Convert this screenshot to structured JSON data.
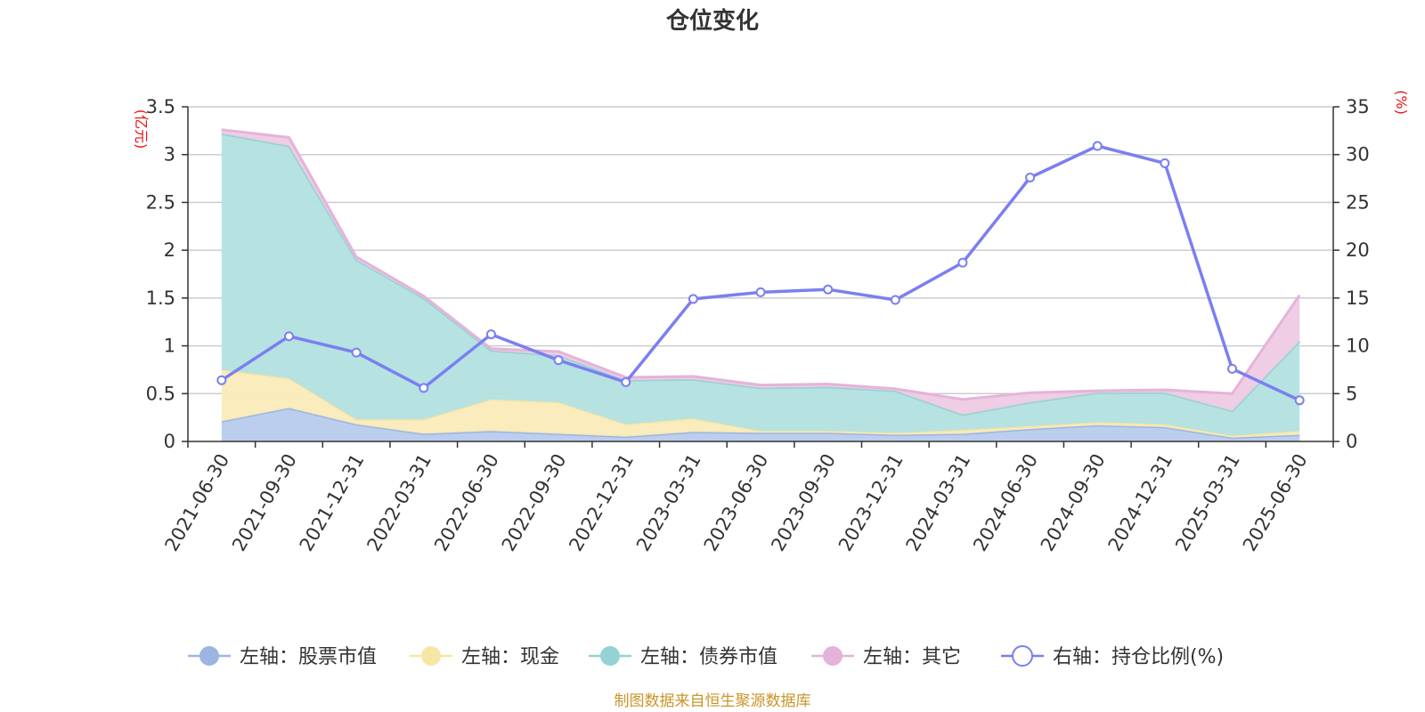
{
  "chart_data": {
    "type": "area",
    "title": "仓位变化",
    "left_axis_unit": "(亿元)",
    "right_axis_unit": "(%)",
    "categories": [
      "2021-06-30",
      "2021-09-30",
      "2021-12-31",
      "2022-03-31",
      "2022-06-30",
      "2022-09-30",
      "2022-12-31",
      "2023-03-31",
      "2023-06-30",
      "2023-09-30",
      "2023-12-31",
      "2024-03-31",
      "2024-06-30",
      "2024-09-30",
      "2024-12-31",
      "2025-03-31",
      "2025-06-30"
    ],
    "y_left": {
      "min": 0,
      "max": 3.5,
      "ticks": [
        "0",
        "0.5",
        "1",
        "1.5",
        "2",
        "2.5",
        "3",
        "3.5"
      ]
    },
    "y_right": {
      "min": 0,
      "max": 35,
      "ticks": [
        "0",
        "5",
        "10",
        "15",
        "20",
        "25",
        "30",
        "35"
      ]
    },
    "stacked": true,
    "grid": true,
    "legend_position": "bottom",
    "series": [
      {
        "name": "左轴：股票市值",
        "axis": "left",
        "color": "#9db5e3",
        "fill": "#b8cbec",
        "values": [
          0.21,
          0.35,
          0.18,
          0.08,
          0.11,
          0.08,
          0.05,
          0.1,
          0.09,
          0.09,
          0.07,
          0.08,
          0.13,
          0.17,
          0.15,
          0.04,
          0.07
        ]
      },
      {
        "name": "左轴：现金",
        "axis": "left",
        "color": "#f8e6a6",
        "fill": "#faebb8",
        "values": [
          0.54,
          0.31,
          0.05,
          0.15,
          0.33,
          0.33,
          0.13,
          0.14,
          0.02,
          0.02,
          0.02,
          0.04,
          0.03,
          0.03,
          0.03,
          0.02,
          0.04
        ]
      },
      {
        "name": "左轴：债券市值",
        "axis": "left",
        "color": "#94d2d3",
        "fill": "#b3e0e0",
        "values": [
          2.47,
          2.43,
          1.67,
          1.27,
          0.51,
          0.49,
          0.46,
          0.41,
          0.45,
          0.46,
          0.44,
          0.16,
          0.25,
          0.31,
          0.33,
          0.26,
          0.94
        ]
      },
      {
        "name": "左轴：其它",
        "axis": "left",
        "color": "#e5b3d9",
        "fill": "#eecbe4",
        "values": [
          0.04,
          0.09,
          0.03,
          0.02,
          0.02,
          0.04,
          0.03,
          0.03,
          0.03,
          0.03,
          0.02,
          0.16,
          0.1,
          0.02,
          0.03,
          0.18,
          0.48
        ]
      },
      {
        "name": "右轴：持仓比例(%)",
        "axis": "right",
        "color": "#7b7ff0",
        "values": [
          6.4,
          11.0,
          9.3,
          5.6,
          11.2,
          8.5,
          6.2,
          14.9,
          15.6,
          15.9,
          14.8,
          18.7,
          27.6,
          30.9,
          29.1,
          7.6,
          4.3
        ]
      }
    ],
    "source": "制图数据来自恒生聚源数据库"
  }
}
